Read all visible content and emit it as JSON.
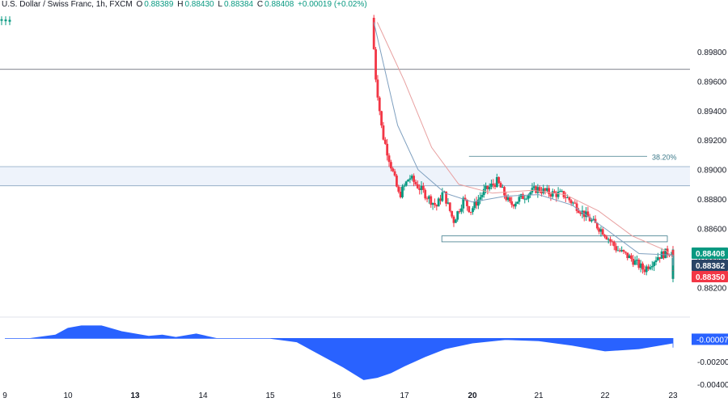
{
  "header": {
    "symbol": "U.S. Dollar / Swiss Franc, 1h, FXCM",
    "o_label": "O",
    "o_value": "0.88389",
    "h_label": "H",
    "h_value": "0.88430",
    "l_label": "L",
    "l_value": "0.88384",
    "c_label": "C",
    "c_value": "0.88408",
    "change": "+0.00019 (+0.02%)"
  },
  "colors": {
    "up": "#089981",
    "down": "#f23645",
    "ema_fast": "#7e9fbf",
    "ema_slow": "#e8a0a0",
    "fib_line": "#3d7a8a",
    "zone_fill": "#eef3fb",
    "zone_border": "#8aa4c0",
    "oscillator": "#2962ff",
    "text": "#131722",
    "grid": "#e0e3eb"
  },
  "chart_data": [
    {
      "type": "candlestick",
      "title": "U.S. Dollar / Swiss Franc, 1h, FXCM",
      "x_ticks": [
        "9",
        "10",
        "13",
        "14",
        "15",
        "16",
        "17",
        "20",
        "21",
        "22",
        "23"
      ],
      "y_ticks": [
        "0.89800",
        "0.89600",
        "0.89400",
        "0.89200",
        "0.89000",
        "0.88800",
        "0.88600",
        "0.88400",
        "0.88200"
      ],
      "ylim": [
        0.8812,
        0.9003
      ],
      "price_labels": [
        {
          "name": "last",
          "value": "0.88408",
          "color": "#089981"
        },
        {
          "name": "ema_fast",
          "value": "0.88362",
          "color": "#2a4466"
        },
        {
          "name": "ema_slow",
          "value": "0.88350",
          "color": "#f23645"
        }
      ],
      "horizontal_lines": [
        {
          "name": "resistance",
          "y": 0.8968
        },
        {
          "name": "zone_top",
          "y": 0.8902
        },
        {
          "name": "zone_bottom",
          "y": 0.8889
        }
      ],
      "fib_level": {
        "label": "38.20%",
        "y": 0.8909
      },
      "support_box": {
        "top": 0.8855,
        "bottom": 0.8851
      },
      "key_points": [
        {
          "x": 14.55,
          "price": 0.9003
        },
        {
          "x": 14.6,
          "price": 0.8965
        },
        {
          "x": 14.7,
          "price": 0.8925
        },
        {
          "x": 14.95,
          "price": 0.8882
        },
        {
          "x": 15.1,
          "price": 0.8895
        },
        {
          "x": 15.3,
          "price": 0.8885
        },
        {
          "x": 15.5,
          "price": 0.8875
        },
        {
          "x": 15.6,
          "price": 0.8885
        },
        {
          "x": 15.75,
          "price": 0.8865
        },
        {
          "x": 15.9,
          "price": 0.888
        },
        {
          "x": 16.0,
          "price": 0.8872
        },
        {
          "x": 16.2,
          "price": 0.8885
        },
        {
          "x": 16.4,
          "price": 0.8892
        },
        {
          "x": 16.6,
          "price": 0.8876
        },
        {
          "x": 16.8,
          "price": 0.8882
        },
        {
          "x": 17.0,
          "price": 0.8887
        },
        {
          "x": 17.2,
          "price": 0.8884
        },
        {
          "x": 17.4,
          "price": 0.8883
        },
        {
          "x": 17.6,
          "price": 0.8875
        },
        {
          "x": 17.8,
          "price": 0.8866
        },
        {
          "x": 18.0,
          "price": 0.8858
        },
        {
          "x": 18.2,
          "price": 0.8846
        },
        {
          "x": 18.4,
          "price": 0.884
        },
        {
          "x": 18.6,
          "price": 0.8832
        },
        {
          "x": 18.8,
          "price": 0.8841
        },
        {
          "x": 19.0,
          "price": 0.8845
        },
        {
          "x": 19.2,
          "price": 0.8838
        },
        {
          "x": 19.4,
          "price": 0.8843
        },
        {
          "x": 19.6,
          "price": 0.8832
        },
        {
          "x": 19.8,
          "price": 0.884
        },
        {
          "x": 20.0,
          "price": 0.8834
        },
        {
          "x": 20.2,
          "price": 0.8828
        },
        {
          "x": 20.4,
          "price": 0.8838
        },
        {
          "x": 20.6,
          "price": 0.8835
        },
        {
          "x": 20.8,
          "price": 0.8841
        }
      ],
      "ema_fast_points": [
        {
          "x": 14.55,
          "price": 0.9
        },
        {
          "x": 14.9,
          "price": 0.893
        },
        {
          "x": 15.2,
          "price": 0.89
        },
        {
          "x": 15.6,
          "price": 0.8884
        },
        {
          "x": 16.0,
          "price": 0.8878
        },
        {
          "x": 16.5,
          "price": 0.8882
        },
        {
          "x": 17.0,
          "price": 0.8883
        },
        {
          "x": 17.5,
          "price": 0.8876
        },
        {
          "x": 18.0,
          "price": 0.886
        },
        {
          "x": 18.5,
          "price": 0.8843
        },
        {
          "x": 19.0,
          "price": 0.8842
        },
        {
          "x": 19.5,
          "price": 0.8838
        },
        {
          "x": 20.0,
          "price": 0.8837
        },
        {
          "x": 20.5,
          "price": 0.8835
        },
        {
          "x": 20.8,
          "price": 0.8836
        }
      ],
      "ema_slow_points": [
        {
          "x": 14.6,
          "price": 0.9
        },
        {
          "x": 15.0,
          "price": 0.896
        },
        {
          "x": 15.4,
          "price": 0.8915
        },
        {
          "x": 15.8,
          "price": 0.889
        },
        {
          "x": 16.3,
          "price": 0.8884
        },
        {
          "x": 16.9,
          "price": 0.8886
        },
        {
          "x": 17.4,
          "price": 0.8883
        },
        {
          "x": 17.9,
          "price": 0.8872
        },
        {
          "x": 18.4,
          "price": 0.8855
        },
        {
          "x": 18.9,
          "price": 0.8845
        },
        {
          "x": 19.4,
          "price": 0.884
        },
        {
          "x": 19.9,
          "price": 0.8837
        },
        {
          "x": 20.4,
          "price": 0.8835
        },
        {
          "x": 20.8,
          "price": 0.8835
        }
      ]
    },
    {
      "type": "area",
      "y_ticks": [
        "-0.00007",
        "-0.00200",
        "-0.00400"
      ],
      "ylim": [
        -0.0042,
        0.0013
      ],
      "current_label": "-0.00007",
      "x": [
        9.0,
        9.4,
        9.8,
        10.0,
        10.2,
        10.5,
        10.8,
        11.2,
        11.4,
        11.6,
        11.9,
        12.2,
        12.6,
        13.0,
        13.4,
        14.1,
        14.4,
        14.6,
        14.8,
        15.0,
        15.3,
        15.6,
        16.0,
        16.5,
        17.0,
        17.5,
        18.0,
        18.5,
        19.0,
        19.5,
        20.0,
        20.5,
        20.8
      ],
      "values": [
        0.0,
        0.0,
        0.0003,
        0.0009,
        0.0011,
        0.0011,
        0.0006,
        0.0002,
        0.0003,
        0.0001,
        0.0004,
        0.0,
        0.0,
        0.0,
        -0.0003,
        -0.0025,
        -0.0036,
        -0.0034,
        -0.003,
        -0.0024,
        -0.0016,
        -0.0009,
        -0.0004,
        -0.0001,
        -0.0002,
        -0.0006,
        -0.0011,
        -0.0009,
        -0.0004,
        -0.0008,
        -0.0005,
        -0.0001,
        -7e-05
      ]
    }
  ]
}
